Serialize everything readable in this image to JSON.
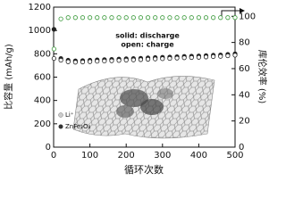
{
  "chart_data": {
    "type": "scatter",
    "x_label": "循环次数",
    "y_label": "比容量 (mAh/g)",
    "y2_label": "库伦效率 (%)",
    "annotations": [
      "solid: discharge",
      "open: charge"
    ],
    "inset_labels": [
      "Li⁺",
      "ZnFe₂O₄"
    ],
    "xlim": [
      0,
      500
    ],
    "xticks": [
      0,
      100,
      200,
      300,
      400,
      500
    ],
    "ylim": [
      0,
      1200
    ],
    "yticks": [
      0,
      200,
      400,
      600,
      800,
      1000,
      1200
    ],
    "y2lim": [
      0,
      107
    ],
    "y2ticks": [
      0,
      20,
      40,
      60,
      80,
      100
    ],
    "x": [
      1,
      20,
      40,
      60,
      80,
      100,
      120,
      140,
      160,
      180,
      200,
      220,
      240,
      260,
      280,
      300,
      320,
      340,
      360,
      380,
      400,
      420,
      440,
      460,
      480,
      500
    ],
    "series": [
      {
        "color": "#222222",
        "marker": "filled",
        "values": [
          1010,
          760,
          745,
          740,
          742,
          745,
          748,
          750,
          752,
          755,
          758,
          760,
          762,
          765,
          768,
          770,
          772,
          775,
          778,
          780,
          782,
          785,
          788,
          790,
          795,
          800
        ]
      },
      {
        "color": "#222222",
        "marker": "open",
        "values": [
          760,
          745,
          732,
          728,
          730,
          733,
          736,
          738,
          740,
          743,
          746,
          748,
          750,
          753,
          756,
          758,
          760,
          763,
          766,
          768,
          770,
          773,
          776,
          778,
          783,
          788
        ]
      },
      {
        "color": "#3a9a3a",
        "marker": "open",
        "axis": "y2",
        "values": [
          75,
          98,
          99,
          99,
          99,
          99,
          99,
          99,
          99,
          99,
          99,
          99,
          99,
          99,
          99,
          99,
          99,
          99,
          99,
          99,
          99,
          99,
          99,
          99,
          99,
          99
        ]
      }
    ]
  }
}
